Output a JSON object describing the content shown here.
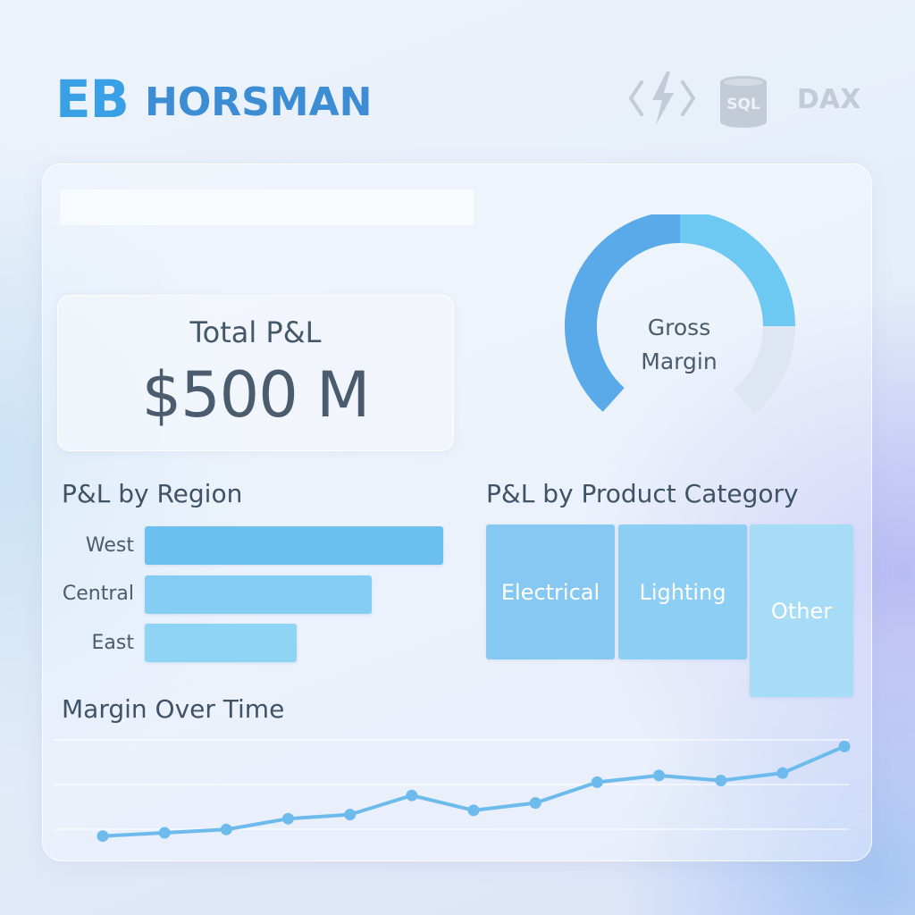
{
  "brand": {
    "initials": "EB",
    "name": "HORSMAN"
  },
  "tools": [
    {
      "name": "function-app-icon"
    },
    {
      "name": "sql-icon",
      "label": "SQL"
    },
    {
      "name": "dax-label",
      "label": "DAX"
    }
  ],
  "kpi": {
    "label": "Total P&L",
    "value": "$500 M"
  },
  "gauge": {
    "label_line1": "Gross",
    "label_line2": "Margin",
    "segments": [
      "#5aa9e8",
      "#6dc9f2",
      "#dfe6f3"
    ]
  },
  "region_chart": {
    "title": "P&L by Region",
    "bars": [
      {
        "label": "West",
        "value": 100,
        "color": "#6cc0ef"
      },
      {
        "label": "Central",
        "value": 76,
        "color": "#84cef3"
      },
      {
        "label": "East",
        "value": 51,
        "color": "#8fd4f5"
      }
    ]
  },
  "product_chart": {
    "title": "P&L by Product Category",
    "tiles": [
      {
        "label": "Electrical",
        "color": "#86c8f1"
      },
      {
        "label": "Lighting",
        "color": "#8ccef4"
      },
      {
        "label": "Other",
        "color": "#a7dcf7"
      }
    ]
  },
  "chart_data": {
    "type": "line",
    "title": "Margin Over Time",
    "x": [
      1,
      2,
      3,
      4,
      5,
      6,
      7,
      8,
      9,
      10,
      11,
      12,
      13
    ],
    "values": [
      10,
      14,
      18,
      31,
      36,
      59,
      41,
      50,
      75,
      83,
      77,
      86,
      118
    ],
    "ylim": [
      0,
      140
    ],
    "xlabel": "",
    "ylabel": "",
    "color": "#6dbbec"
  }
}
